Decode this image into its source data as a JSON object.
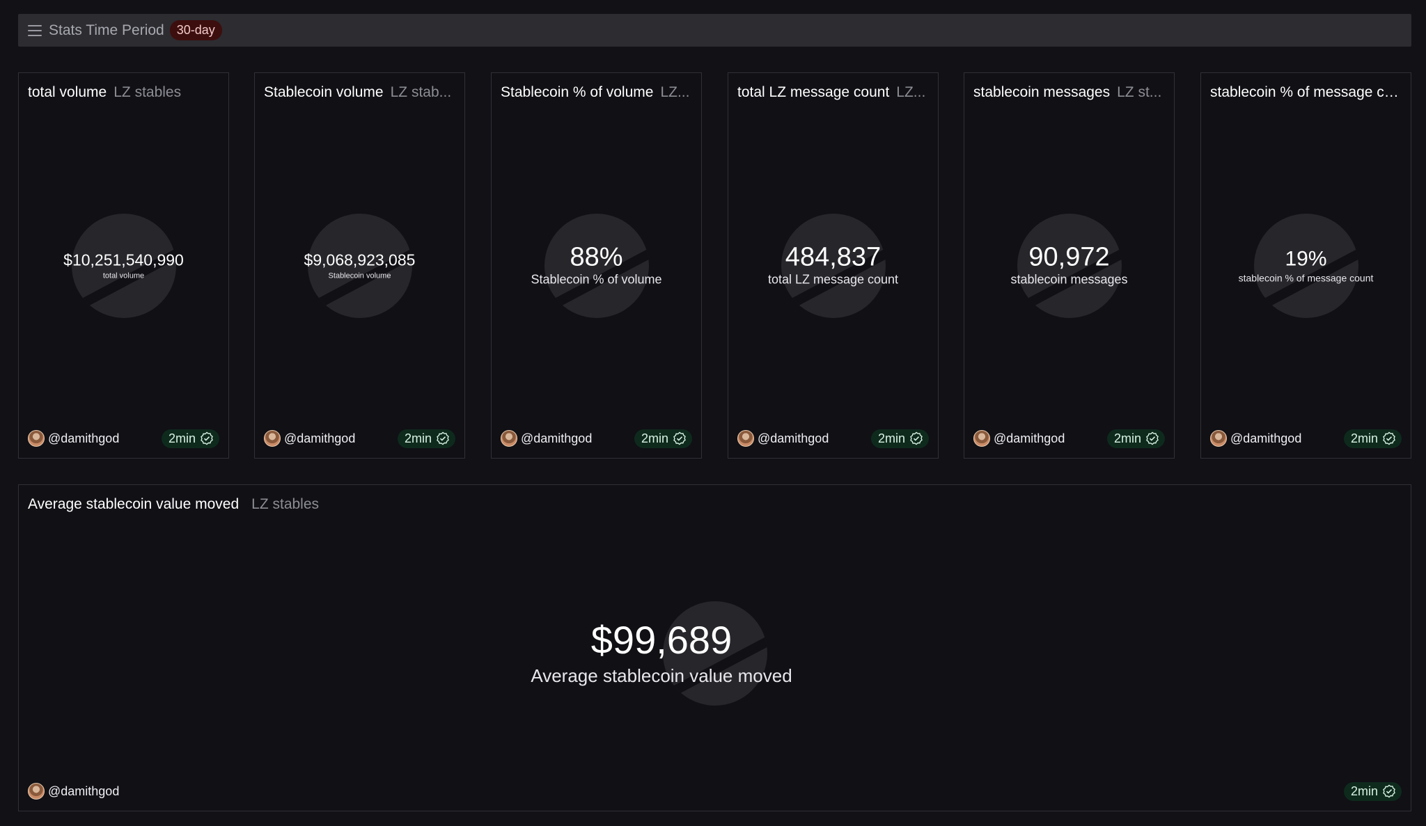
{
  "topbar": {
    "title": "Stats Time Period",
    "period": "30-day"
  },
  "cards": [
    {
      "title": "total volume",
      "source": "LZ stables",
      "value": "$10,251,540,990",
      "label": "total volume",
      "author": "@damithgod",
      "freshness": "2min"
    },
    {
      "title": "Stablecoin volume",
      "source": "LZ stab...",
      "value": "$9,068,923,085",
      "label": "Stablecoin volume",
      "author": "@damithgod",
      "freshness": "2min"
    },
    {
      "title": "Stablecoin % of volume",
      "source": "LZ...",
      "value": "88%",
      "label": "Stablecoin % of volume",
      "author": "@damithgod",
      "freshness": "2min"
    },
    {
      "title": "total LZ message count",
      "source": "LZ...",
      "value": "484,837",
      "label": "total LZ message count",
      "author": "@damithgod",
      "freshness": "2min"
    },
    {
      "title": "stablecoin messages",
      "source": "LZ st...",
      "value": "90,972",
      "label": "stablecoin messages",
      "author": "@damithgod",
      "freshness": "2min"
    },
    {
      "title": "stablecoin % of message c...",
      "source": "",
      "value": "19%",
      "label": "stablecoin % of message count",
      "author": "@damithgod",
      "freshness": "2min"
    }
  ],
  "wide_card": {
    "title": "Average stablecoin value moved",
    "source": "LZ stables",
    "value": "$99,689",
    "label": "Average stablecoin value moved",
    "author": "@damithgod",
    "freshness": "2min"
  },
  "icons": {
    "menu": "menu-icon",
    "verified": "check-circle-icon",
    "avatar": "user-avatar"
  },
  "colors": {
    "background": "#111116",
    "card_border": "#303036",
    "badge_red": "#3d0e0e",
    "freshness_green": "#0e2a1d"
  }
}
